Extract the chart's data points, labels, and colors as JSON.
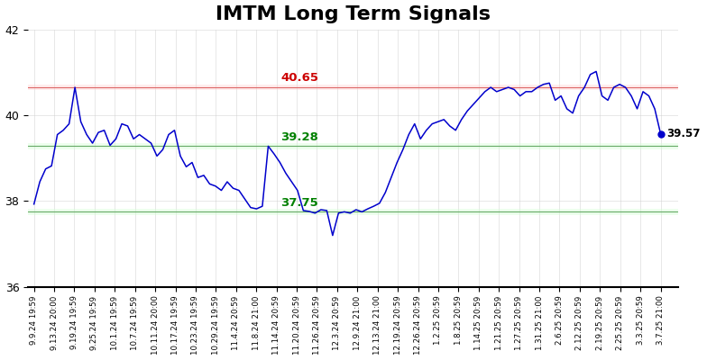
{
  "title": "IMTM Long Term Signals",
  "red_line": 40.65,
  "green_line_upper": 39.28,
  "green_line_lower": 37.75,
  "last_value": 39.57,
  "ylim": [
    36,
    42
  ],
  "yticks": [
    36,
    38,
    40,
    42
  ],
  "red_label": "40.65",
  "green_upper_label": "39.28",
  "green_lower_label": "37.75",
  "last_label": "39.57",
  "line_color": "#0000cc",
  "red_color": "#cc0000",
  "green_color": "#008000",
  "title_fontsize": 16,
  "red_band_color": "#ffcccc",
  "green_band_color": "#ccffcc",
  "x_labels": [
    "9.9.24 19:59",
    "9.13.24 20:00",
    "9.19.24 19:59",
    "9.25.24 19:59",
    "10.1.24 19:59",
    "10.7.24 19:59",
    "10.11.24 20:00",
    "10.17.24 19:59",
    "10.23.24 19:59",
    "10.29.24 19:59",
    "11.4.24 20:59",
    "11.8.24 21:00",
    "11.14.24 20:59",
    "11.20.24 20:59",
    "11.26.24 20:59",
    "12.3.24 20:59",
    "12.9.24 21:00",
    "12.13.24 21:00",
    "12.19.24 20:59",
    "12.26.24 20:59",
    "1.2.25 20:59",
    "1.8.25 20:59",
    "1.14.25 20:59",
    "1.21.25 20:59",
    "1.27.25 20:59",
    "1.31.25 21:00",
    "2.6.25 20:59",
    "2.12.25 20:59",
    "2.19.25 20:59",
    "2.25.25 20:59",
    "3.3.25 20:59",
    "3.7.25 21:00"
  ],
  "y_values": [
    37.93,
    38.45,
    38.75,
    38.82,
    39.55,
    39.65,
    39.8,
    40.65,
    39.85,
    39.55,
    39.35,
    39.6,
    39.65,
    39.3,
    39.45,
    39.8,
    39.75,
    39.45,
    39.55,
    39.45,
    39.35,
    39.05,
    39.2,
    39.55,
    39.65,
    39.05,
    38.8,
    38.9,
    38.55,
    38.6,
    38.4,
    38.35,
    38.25,
    38.45,
    38.3,
    38.25,
    38.05,
    37.85,
    37.82,
    37.88,
    39.28,
    39.1,
    38.9,
    38.65,
    38.45,
    38.25,
    37.78,
    37.76,
    37.72,
    37.8,
    37.78,
    37.2,
    37.72,
    37.75,
    37.72,
    37.8,
    37.75,
    37.82,
    37.88,
    37.95,
    38.2,
    38.55,
    38.9,
    39.2,
    39.55,
    39.8,
    39.45,
    39.65,
    39.8,
    39.85,
    39.9,
    39.75,
    39.65,
    39.9,
    40.1,
    40.25,
    40.4,
    40.55,
    40.65,
    40.55,
    40.6,
    40.65,
    40.6,
    40.45,
    40.55,
    40.55,
    40.65,
    40.72,
    40.75,
    40.35,
    40.45,
    40.15,
    40.05,
    40.45,
    40.65,
    40.95,
    41.02,
    40.45,
    40.35,
    40.65,
    40.72,
    40.65,
    40.45,
    40.15,
    40.55,
    40.45,
    40.15,
    39.57
  ]
}
